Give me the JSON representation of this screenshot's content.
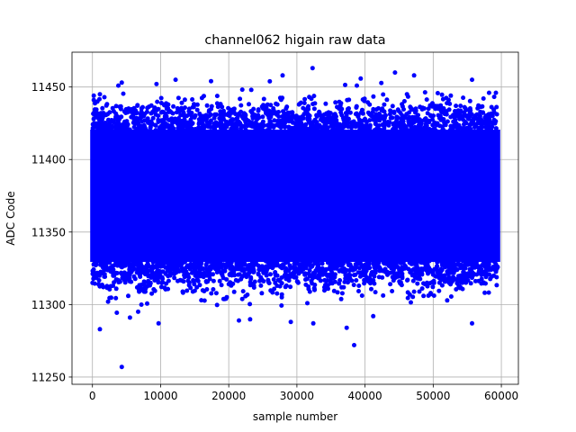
{
  "chart_data": {
    "type": "scatter",
    "title": "channel062 higain raw data",
    "xlabel": "sample number",
    "ylabel": "ADC Code",
    "xlim": [
      -3000,
      62500
    ],
    "ylim": [
      11245,
      11474
    ],
    "xticks": [
      0,
      10000,
      20000,
      30000,
      40000,
      50000,
      60000
    ],
    "xtick_labels": [
      "0",
      "10000",
      "20000",
      "30000",
      "40000",
      "50000",
      "60000"
    ],
    "yticks": [
      11250,
      11300,
      11350,
      11400,
      11450
    ],
    "ytick_labels": [
      "11250",
      "11300",
      "11350",
      "11400",
      "11450"
    ],
    "grid": true,
    "legend": "none",
    "marker_color": "#0000ff",
    "series": [
      {
        "color": "#0000ff",
        "sample_count": 59500,
        "x_range": [
          0,
          59500
        ],
        "center": 11370,
        "dense_band": [
          11330,
          11420
        ],
        "outliers": [
          {
            "x": 4300,
            "y": 11257
          },
          {
            "x": 1100,
            "y": 11283
          },
          {
            "x": 38400,
            "y": 11272
          },
          {
            "x": 37300,
            "y": 11284
          },
          {
            "x": 9700,
            "y": 11287
          },
          {
            "x": 29100,
            "y": 11288
          },
          {
            "x": 32400,
            "y": 11287
          },
          {
            "x": 55700,
            "y": 11287
          },
          {
            "x": 21500,
            "y": 11289
          },
          {
            "x": 5500,
            "y": 11291
          },
          {
            "x": 6700,
            "y": 11295
          },
          {
            "x": 41200,
            "y": 11292
          },
          {
            "x": 2300,
            "y": 11302
          },
          {
            "x": 32300,
            "y": 11463
          },
          {
            "x": 44400,
            "y": 11460
          },
          {
            "x": 47200,
            "y": 11458
          },
          {
            "x": 27900,
            "y": 11458
          },
          {
            "x": 12200,
            "y": 11455
          },
          {
            "x": 55700,
            "y": 11455
          },
          {
            "x": 17400,
            "y": 11454
          },
          {
            "x": 4300,
            "y": 11453
          },
          {
            "x": 3800,
            "y": 11451
          },
          {
            "x": 9400,
            "y": 11452
          },
          {
            "x": 38800,
            "y": 11451
          },
          {
            "x": 23300,
            "y": 11448
          },
          {
            "x": 200,
            "y": 11444
          },
          {
            "x": 1100,
            "y": 11445
          },
          {
            "x": 58200,
            "y": 11446
          },
          {
            "x": 59200,
            "y": 11446
          }
        ]
      }
    ]
  }
}
